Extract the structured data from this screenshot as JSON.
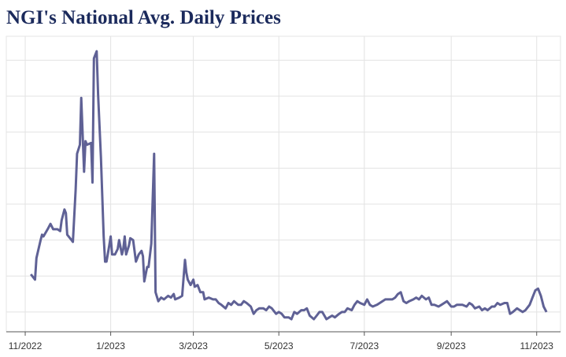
{
  "chart_data": {
    "type": "line",
    "title": "NGI's National Avg. Daily Prices",
    "x": [
      4,
      7,
      8,
      11,
      12,
      13,
      16,
      18,
      20,
      23,
      25,
      26,
      28,
      29,
      30,
      33,
      34,
      36,
      37,
      39,
      40,
      42,
      43,
      44,
      47,
      48,
      49,
      51,
      52,
      54,
      56,
      57,
      58,
      60,
      61,
      62,
      64,
      66,
      67,
      69,
      70,
      71,
      72,
      74,
      75,
      77,
      79,
      81,
      83,
      84,
      85,
      87,
      88,
      90,
      92,
      93,
      95,
      97,
      99,
      102,
      104,
      106,
      107,
      110,
      112,
      114,
      115,
      116,
      118,
      120,
      121,
      123,
      125,
      127,
      128,
      131,
      134,
      136,
      138,
      140,
      143,
      145,
      147,
      149,
      152,
      154,
      156,
      158,
      161,
      163,
      165,
      167,
      170,
      172,
      174,
      176,
      179,
      181,
      183,
      185,
      188,
      190,
      192,
      194,
      197,
      199,
      201,
      203,
      206,
      208,
      210,
      212,
      215,
      217,
      219,
      221,
      224,
      226,
      228,
      230,
      233,
      235,
      237,
      239,
      242,
      244,
      246,
      248,
      251,
      253,
      255,
      257,
      260,
      262,
      264,
      266,
      268,
      270,
      272,
      274,
      277,
      279,
      281,
      283,
      286,
      288,
      290,
      292,
      295,
      297,
      299,
      301,
      304,
      306,
      308,
      310,
      312,
      315,
      317,
      319,
      321,
      324,
      326,
      328,
      330,
      333,
      335,
      337,
      339,
      342,
      344,
      346,
      348,
      351,
      353,
      355,
      357,
      360,
      362,
      364,
      366,
      368,
      370,
      372
    ],
    "series": [
      {
        "color": "#5f6195",
        "values": [
          4.1,
          3.8,
          5.0,
          6.0,
          6.3,
          6.2,
          6.6,
          6.9,
          6.6,
          6.6,
          6.5,
          7.1,
          7.7,
          7.5,
          6.3,
          6.0,
          5.9,
          8.8,
          10.8,
          11.3,
          13.9,
          9.8,
          11.5,
          11.3,
          11.4,
          9.2,
          16.1,
          16.5,
          14.1,
          10.6,
          6.2,
          4.8,
          4.8,
          5.7,
          6.2,
          5.2,
          5.2,
          5.5,
          6.0,
          5.2,
          5.5,
          6.2,
          5.2,
          5.7,
          6.1,
          6.0,
          4.8,
          5.2,
          5.4,
          5.1,
          3.7,
          4.5,
          4.5,
          5.8,
          10.8,
          3.1,
          2.6,
          2.8,
          2.7,
          2.9,
          2.8,
          3.0,
          2.7,
          2.8,
          2.9,
          4.9,
          4.2,
          3.8,
          3.5,
          3.8,
          3.4,
          3.5,
          3.1,
          3.1,
          2.7,
          2.8,
          2.7,
          2.7,
          2.5,
          2.4,
          2.2,
          2.5,
          2.4,
          2.6,
          2.4,
          2.4,
          2.6,
          2.5,
          2.3,
          1.9,
          2.1,
          2.2,
          2.2,
          2.1,
          2.3,
          2.2,
          1.9,
          2.0,
          1.9,
          1.7,
          1.7,
          1.6,
          2.0,
          1.9,
          2.1,
          2.1,
          2.2,
          1.8,
          1.6,
          1.8,
          2.0,
          2.0,
          1.6,
          1.7,
          1.8,
          1.7,
          1.9,
          2.0,
          2.0,
          2.2,
          2.1,
          2.4,
          2.6,
          2.5,
          2.4,
          2.7,
          2.4,
          2.3,
          2.4,
          2.5,
          2.6,
          2.7,
          2.7,
          2.7,
          2.8,
          3.0,
          3.1,
          2.6,
          2.5,
          2.6,
          2.7,
          2.8,
          2.7,
          2.9,
          2.7,
          2.8,
          2.4,
          2.4,
          2.3,
          2.4,
          2.5,
          2.6,
          2.3,
          2.3,
          2.4,
          2.4,
          2.4,
          2.3,
          2.5,
          2.4,
          2.2,
          2.3,
          2.1,
          2.2,
          2.1,
          2.3,
          2.3,
          2.5,
          2.4,
          2.5,
          2.5,
          1.9,
          2.0,
          2.2,
          2.1,
          2.0,
          2.1,
          2.4,
          2.8,
          3.2,
          3.3,
          2.9,
          2.3,
          2.0
        ]
      }
    ],
    "xlim": [
      -13.5,
      382
    ],
    "xticks": [
      {
        "value": 0,
        "label": "11/2022"
      },
      {
        "value": 61,
        "label": "1/2023"
      },
      {
        "value": 120,
        "label": "3/2023"
      },
      {
        "value": 181,
        "label": "5/2023"
      },
      {
        "value": 242,
        "label": "7/2023"
      },
      {
        "value": 304,
        "label": "9/2023"
      },
      {
        "value": 365,
        "label": "11/2023"
      }
    ],
    "ylim": [
      0.9,
      17.2
    ],
    "yticks": [
      2,
      4,
      6,
      8,
      10,
      12,
      14,
      16
    ],
    "grid": true
  }
}
